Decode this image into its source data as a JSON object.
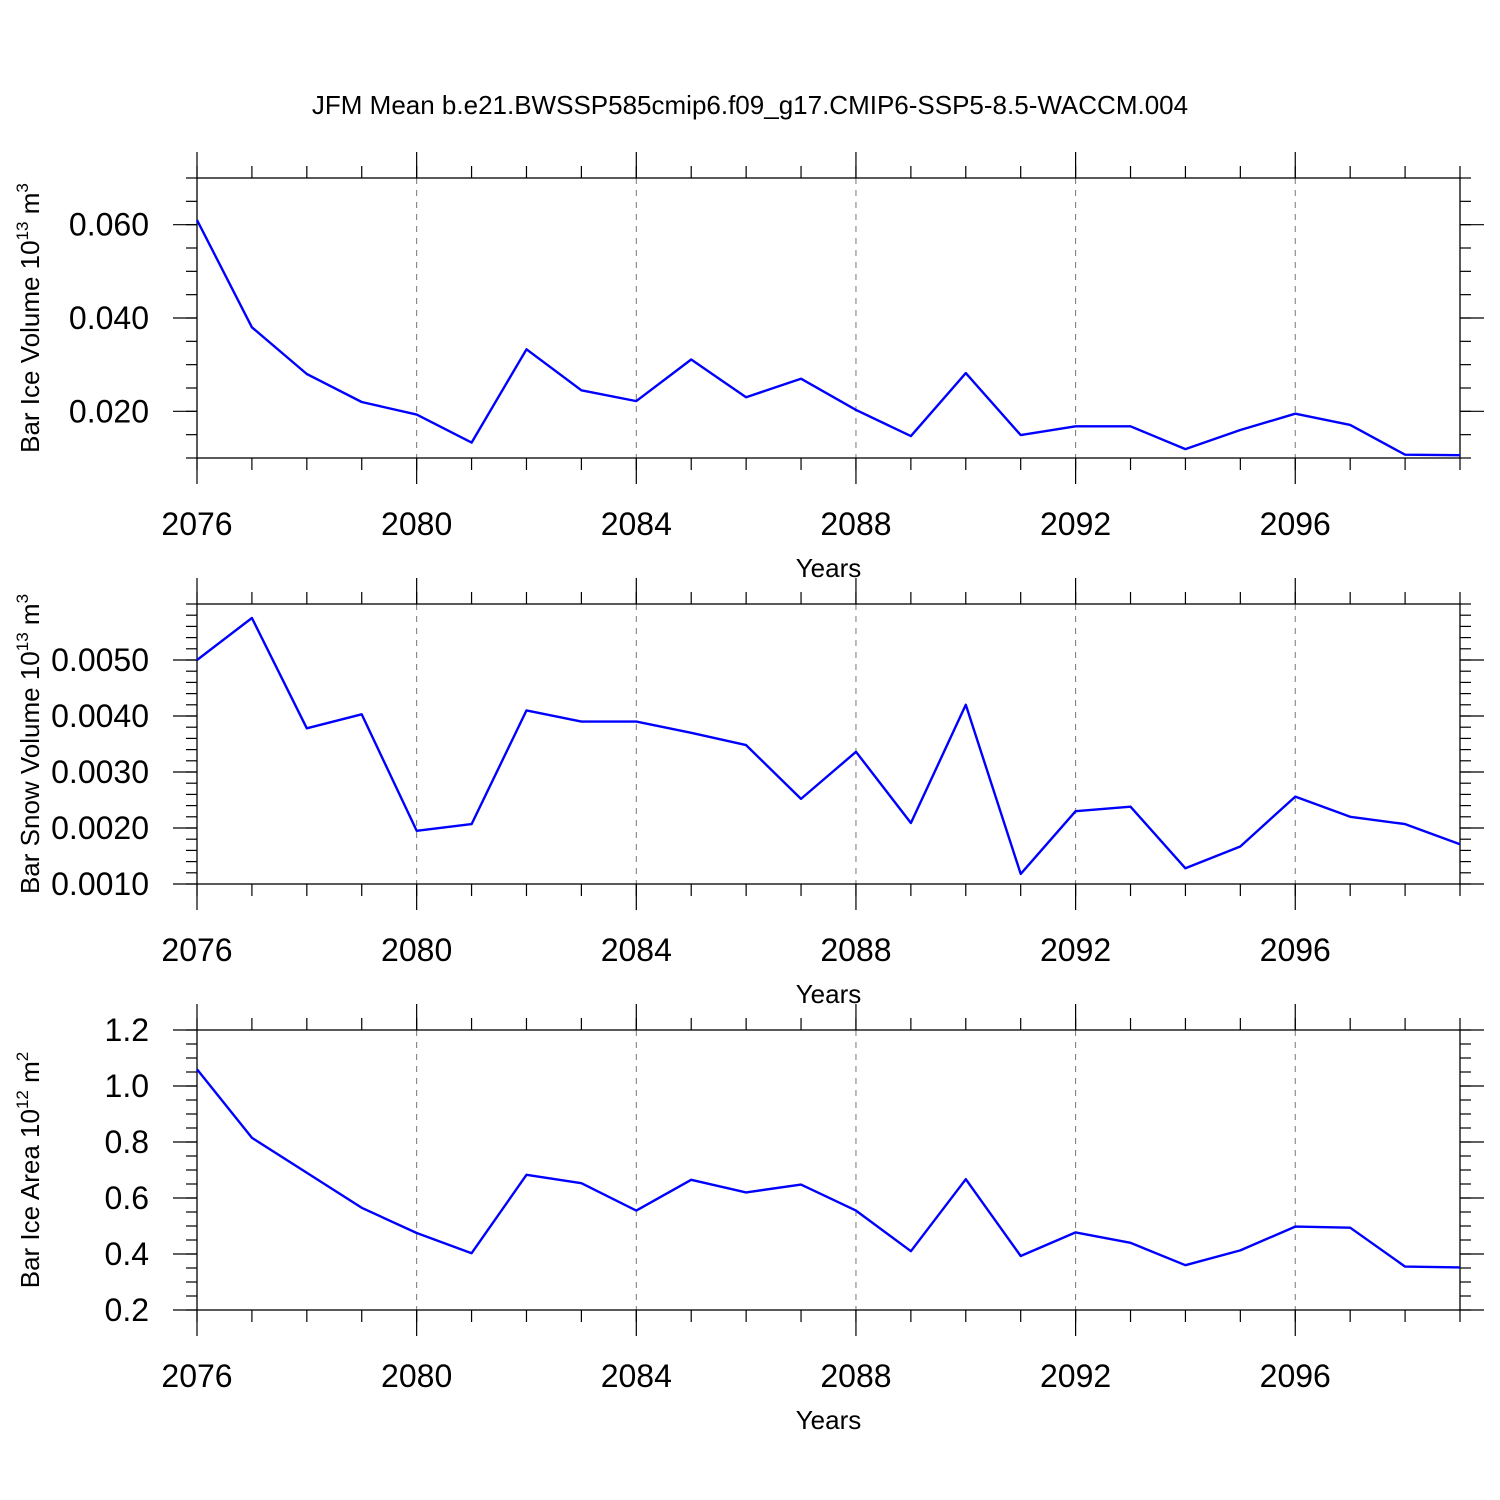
{
  "title": "JFM Mean b.e21.BWSSP585cmip6.f09_g17.CMIP6-SSP5-8.5-WACCM.004",
  "colors": {
    "line": "#0000ff",
    "frame": "#000000",
    "grid": "#777777"
  },
  "chart_data": [
    {
      "type": "line",
      "ylabel": {
        "text": "Bar Ice Volume 10",
        "sup": "13",
        "tail": " m",
        "sup2": "3"
      },
      "xlabel": "Years",
      "xlim": [
        2076,
        2099
      ],
      "ylim": [
        0.01,
        0.07
      ],
      "yticks_major": [
        0.02,
        0.04,
        0.06
      ],
      "ytick_labels": [
        "0.020",
        "0.040",
        "0.060"
      ],
      "yticks_minor_step": 0.005,
      "xticks_major": [
        2076,
        2080,
        2084,
        2088,
        2092,
        2096
      ],
      "xtick_labels": [
        "2076",
        "2080",
        "2084",
        "2088",
        "2092",
        "2096"
      ],
      "grid_x": [
        2080,
        2084,
        2088,
        2092,
        2096
      ],
      "x": [
        2076,
        2077,
        2078,
        2079,
        2080,
        2081,
        2082,
        2083,
        2084,
        2085,
        2086,
        2087,
        2088,
        2089,
        2090,
        2091,
        2092,
        2093,
        2094,
        2095,
        2096,
        2097,
        2098,
        2099
      ],
      "values": [
        0.061,
        0.038,
        0.028,
        0.022,
        0.0193,
        0.0133,
        0.0333,
        0.0245,
        0.0222,
        0.0311,
        0.023,
        0.027,
        0.0203,
        0.0147,
        0.0282,
        0.0149,
        0.0168,
        0.0168,
        0.0119,
        0.016,
        0.0195,
        0.0171,
        0.0107,
        0.0106
      ]
    },
    {
      "type": "line",
      "ylabel": {
        "text": "Bar Snow Volume 10",
        "sup": "13",
        "tail": " m",
        "sup2": "3"
      },
      "xlabel": "Years",
      "xlim": [
        2076,
        2099
      ],
      "ylim": [
        0.001,
        0.006
      ],
      "yticks_major": [
        0.001,
        0.002,
        0.003,
        0.004,
        0.005
      ],
      "ytick_labels": [
        "0.0010",
        "0.0020",
        "0.0030",
        "0.0040",
        "0.0050"
      ],
      "yticks_minor_step": 0.0002,
      "xticks_major": [
        2076,
        2080,
        2084,
        2088,
        2092,
        2096
      ],
      "xtick_labels": [
        "2076",
        "2080",
        "2084",
        "2088",
        "2092",
        "2096"
      ],
      "grid_x": [
        2080,
        2084,
        2088,
        2092,
        2096
      ],
      "x": [
        2076,
        2077,
        2078,
        2079,
        2080,
        2081,
        2082,
        2083,
        2084,
        2085,
        2086,
        2087,
        2088,
        2089,
        2090,
        2091,
        2092,
        2093,
        2094,
        2095,
        2096,
        2097,
        2098,
        2099
      ],
      "values": [
        0.005,
        0.00575,
        0.00378,
        0.00403,
        0.00195,
        0.00207,
        0.0041,
        0.0039,
        0.0039,
        0.0037,
        0.00348,
        0.00252,
        0.00336,
        0.00209,
        0.0042,
        0.00118,
        0.0023,
        0.00238,
        0.00128,
        0.00167,
        0.00256,
        0.0022,
        0.00207,
        0.00171
      ]
    },
    {
      "type": "line",
      "ylabel": {
        "text": "Bar Ice Area 10",
        "sup": "12",
        "tail": " m",
        "sup2": "2"
      },
      "xlabel": "Years",
      "xlim": [
        2076,
        2099
      ],
      "ylim": [
        0.2,
        1.2
      ],
      "yticks_major": [
        0.2,
        0.4,
        0.6,
        0.8,
        1.0,
        1.2
      ],
      "ytick_labels": [
        "0.2",
        "0.4",
        "0.6",
        "0.8",
        "1.0",
        "1.2"
      ],
      "yticks_minor_step": 0.05,
      "xticks_major": [
        2076,
        2080,
        2084,
        2088,
        2092,
        2096
      ],
      "xtick_labels": [
        "2076",
        "2080",
        "2084",
        "2088",
        "2092",
        "2096"
      ],
      "grid_x": [
        2080,
        2084,
        2088,
        2092,
        2096
      ],
      "x": [
        2076,
        2077,
        2078,
        2079,
        2080,
        2081,
        2082,
        2083,
        2084,
        2085,
        2086,
        2087,
        2088,
        2089,
        2090,
        2091,
        2092,
        2093,
        2094,
        2095,
        2096,
        2097,
        2098,
        2099
      ],
      "values": [
        1.06,
        0.815,
        0.69,
        0.565,
        0.475,
        0.403,
        0.683,
        0.653,
        0.555,
        0.665,
        0.62,
        0.648,
        0.555,
        0.41,
        0.667,
        0.393,
        0.477,
        0.44,
        0.36,
        0.413,
        0.498,
        0.494,
        0.355,
        0.352
      ]
    }
  ]
}
